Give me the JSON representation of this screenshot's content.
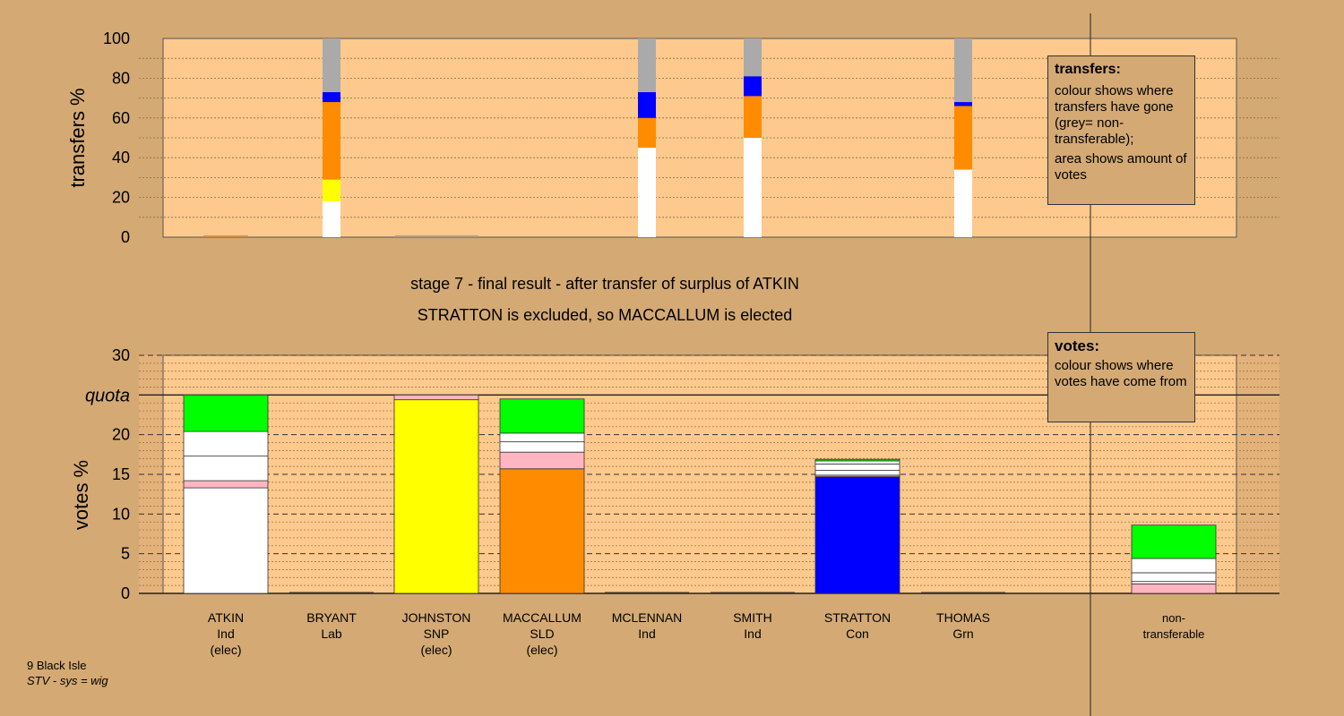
{
  "legend_transfers": {
    "title": "transfers:",
    "lines": [
      "colour shows where transfers have gone (grey= non-transferable);",
      "area shows amount of votes"
    ]
  },
  "legend_votes": {
    "title": "votes:",
    "lines": [
      "colour shows where votes have come from"
    ]
  },
  "footer": {
    "line1": "9 Black Isle",
    "line2": "STV - sys = wig"
  },
  "colors": {
    "background": "#d4a973",
    "plot_area": "#fdc98d",
    "Ind": "#ffffff",
    "Lab": "#ffb6c1",
    "SNP": "#ffff00",
    "SLD": "#ff8c00",
    "Con": "#0000ff",
    "Grn": "#00ff00",
    "non_transferable": "#aaaaaa"
  },
  "chart_data": [
    {
      "type": "bar",
      "stacked": true,
      "ylabel": "transfers %",
      "ylim": [
        0,
        100
      ],
      "yticks": [
        0,
        20,
        40,
        60,
        80,
        100
      ],
      "columns": [
        {
          "x": "ATKIN",
          "segments": []
        },
        {
          "x": "BRYANT",
          "segments": [
            {
              "color": "#ffffff",
              "value": 18
            },
            {
              "color": "#ffff00",
              "value": 11
            },
            {
              "color": "#ff8c00",
              "value": 39
            },
            {
              "color": "#0000ff",
              "value": 5
            },
            {
              "color": "#aaaaaa",
              "value": 27
            }
          ]
        },
        {
          "x": "JOHNSTON",
          "segments": []
        },
        {
          "x": "MACCALLUM",
          "segments": []
        },
        {
          "x": "MCLENNAN",
          "segments": [
            {
              "color": "#ffffff",
              "value": 45
            },
            {
              "color": "#ff8c00",
              "value": 15
            },
            {
              "color": "#0000ff",
              "value": 13
            },
            {
              "color": "#aaaaaa",
              "value": 27
            }
          ]
        },
        {
          "x": "SMITH",
          "segments": [
            {
              "color": "#ffffff",
              "value": 50
            },
            {
              "color": "#ff8c00",
              "value": 21
            },
            {
              "color": "#0000ff",
              "value": 10
            },
            {
              "color": "#aaaaaa",
              "value": 19
            }
          ]
        },
        {
          "x": "STRATTON",
          "segments": []
        },
        {
          "x": "THOMAS",
          "segments": [
            {
              "color": "#ffffff",
              "value": 34
            },
            {
              "color": "#ff8c00",
              "value": 32
            },
            {
              "color": "#0000ff",
              "value": 2
            },
            {
              "color": "#aaaaaa",
              "value": 32
            }
          ]
        }
      ]
    },
    {
      "type": "bar",
      "stacked": true,
      "title": "stage 7 - final result - after transfer of surplus of ATKIN",
      "subtitle": "STRATTON is excluded, so MACCALLUM is elected",
      "ylabel": "votes %",
      "ylim": [
        0,
        30
      ],
      "yticks": [
        0,
        5,
        10,
        15,
        20,
        25,
        30
      ],
      "quota": 25,
      "quota_label": "quota",
      "categories": [
        {
          "name": "ATKIN",
          "party": "Ind",
          "status": "(elec)",
          "segments": [
            {
              "color": "#ffffff",
              "value": 13.3
            },
            {
              "color": "#ffb6c1",
              "value": 0.9
            },
            {
              "color": "#ffffff",
              "value": 3.1
            },
            {
              "color": "#ffffff",
              "value": 3.1
            },
            {
              "color": "#00ff00",
              "value": 4.6
            }
          ]
        },
        {
          "name": "BRYANT",
          "party": "Lab",
          "status": "",
          "segments": []
        },
        {
          "name": "JOHNSTON",
          "party": "SNP",
          "status": "(elec)",
          "segments": [
            {
              "color": "#ffff00",
              "value": 24.4
            },
            {
              "color": "#ffb6c1",
              "value": 0.6
            }
          ]
        },
        {
          "name": "MACCALLUM",
          "party": "SLD",
          "status": "(elec)",
          "segments": [
            {
              "color": "#ff8c00",
              "value": 15.7
            },
            {
              "color": "#ffb6c1",
              "value": 2.1
            },
            {
              "color": "#ffffff",
              "value": 1.3
            },
            {
              "color": "#ffffff",
              "value": 1.1
            },
            {
              "color": "#00ff00",
              "value": 4.3
            }
          ]
        },
        {
          "name": "MCLENNAN",
          "party": "Ind",
          "status": "",
          "segments": []
        },
        {
          "name": "SMITH",
          "party": "Ind",
          "status": "",
          "segments": []
        },
        {
          "name": "STRATTON",
          "party": "Con",
          "status": "",
          "segments": [
            {
              "color": "#0000ff",
              "value": 14.7
            },
            {
              "color": "#ffb6c1",
              "value": 0.2
            },
            {
              "color": "#ffffff",
              "value": 0.6
            },
            {
              "color": "#ffffff",
              "value": 0.8
            },
            {
              "color": "#ffffff",
              "value": 0.4
            },
            {
              "color": "#00ff00",
              "value": 0.2
            }
          ]
        },
        {
          "name": "THOMAS",
          "party": "Grn",
          "status": "",
          "segments": []
        },
        {
          "name": "non-",
          "party": "transferable",
          "status": "",
          "segments": [
            {
              "color": "#ffb6c1",
              "value": 1.2
            },
            {
              "color": "#ffffff",
              "value": 0.3
            },
            {
              "color": "#ffffff",
              "value": 1.1
            },
            {
              "color": "#ffffff",
              "value": 1.8
            },
            {
              "color": "#00ff00",
              "value": 4.2
            }
          ]
        }
      ]
    }
  ]
}
